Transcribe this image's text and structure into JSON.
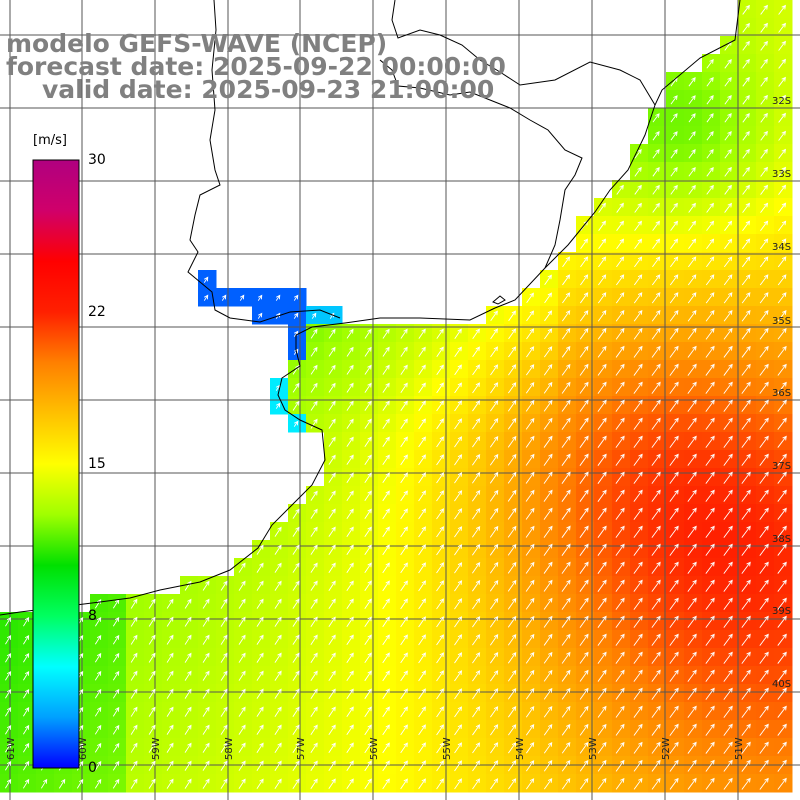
{
  "header": {
    "title": "modelo GEFS-WAVE (NCEP)",
    "forecast": "forecast date: 2025-09-22 00:00:00",
    "valid": "valid date: 2025-09-23 21:00:00"
  },
  "colorbar": {
    "unit": "[m/s]",
    "ticks": [
      "30",
      "22",
      "15",
      "8",
      "0"
    ],
    "min": 0,
    "max": 30,
    "colors": [
      "#0000ff",
      "#00a0ff",
      "#00ffff",
      "#00ff60",
      "#00e000",
      "#a0ff00",
      "#ffff00",
      "#ffc000",
      "#ff8000",
      "#ff2000",
      "#ff0000",
      "#d0006a",
      "#b00080"
    ]
  },
  "map": {
    "lat_labels": [
      "32S",
      "33S",
      "34S",
      "35S",
      "36S",
      "37S",
      "38S",
      "39S",
      "40S"
    ],
    "lon_labels": [
      "61W",
      "60W",
      "59W",
      "58W",
      "57W",
      "56W",
      "55W",
      "54W",
      "53W",
      "52W",
      "51W"
    ],
    "field": "wind speed",
    "arrow_color": "#ffffff",
    "coast_color": "#000000",
    "grid_color": "#555555"
  }
}
